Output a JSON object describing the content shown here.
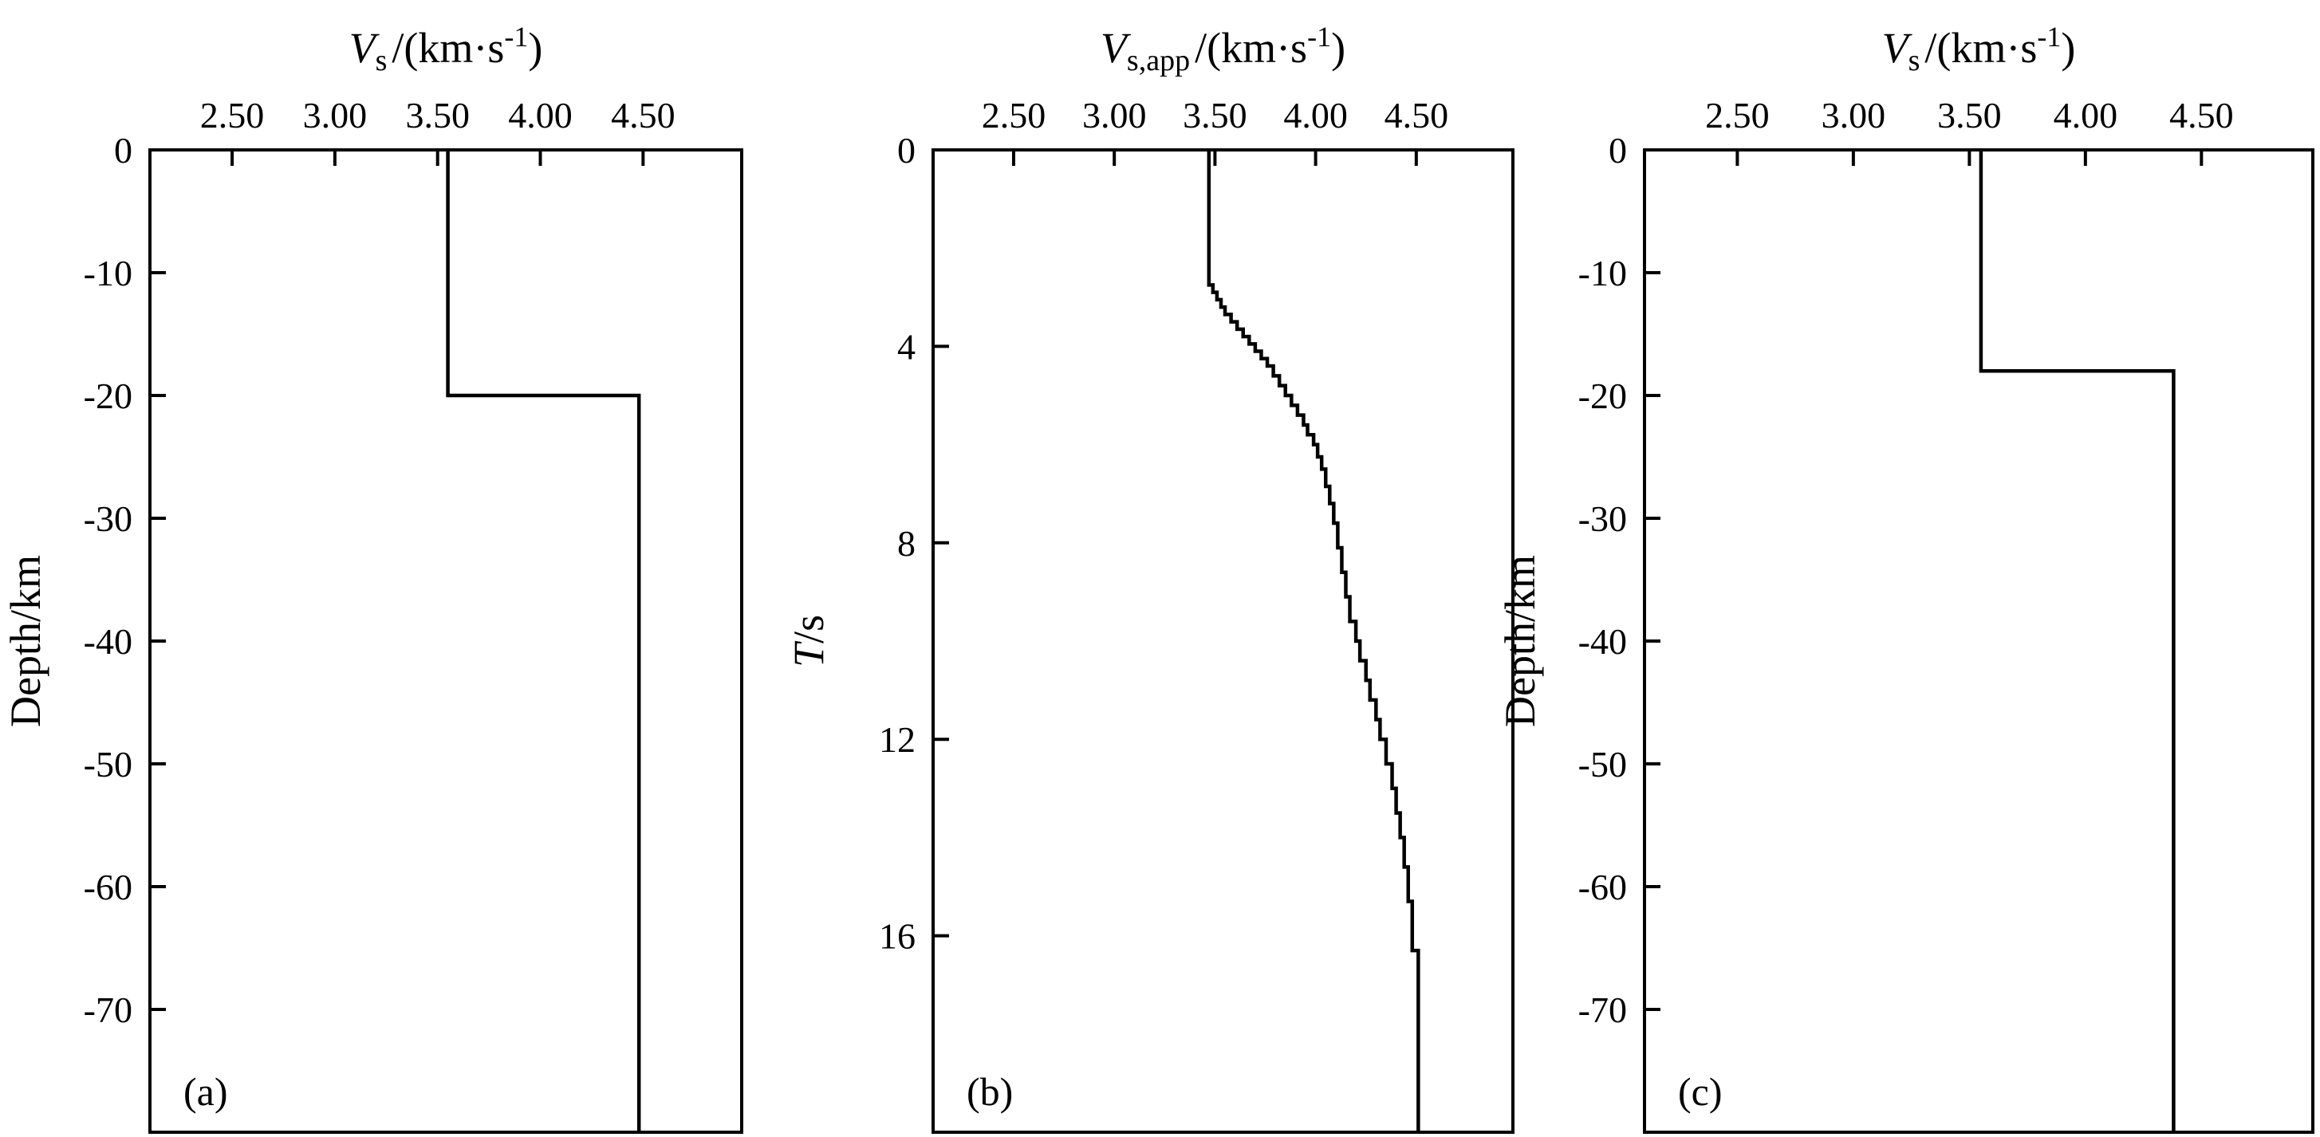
{
  "chart_data": [
    {
      "type": "line",
      "panel_label": "(a)",
      "title": "",
      "xlabel": {
        "main": "V",
        "sub": "s",
        "unit": "/(km·s",
        "sup": "-1",
        "close": ")"
      },
      "ylabel": "Depth/km",
      "xlim": [
        2.1,
        4.98
      ],
      "ylim": [
        0,
        -80
      ],
      "x_axis_position": "top",
      "x_ticks": [
        2.5,
        3.0,
        3.5,
        4.0,
        4.5
      ],
      "x_tick_labels": [
        "2.50",
        "3.00",
        "3.50",
        "4.00",
        "4.50"
      ],
      "y_ticks": [
        0,
        -10,
        -20,
        -30,
        -40,
        -50,
        -60,
        -70
      ],
      "y_tick_labels": [
        "0",
        "-10",
        "-20",
        "-30",
        "-40",
        "-50",
        "-60",
        "-70"
      ],
      "grid": false,
      "series": [
        {
          "x": [
            3.55,
            3.55,
            4.48,
            4.48
          ],
          "y": [
            0,
            -20,
            -20,
            -80
          ]
        }
      ]
    },
    {
      "type": "line",
      "panel_label": "(b)",
      "title": "",
      "xlabel": {
        "main": "V",
        "sub": "s,app",
        "unit": "/(km·s",
        "sup": "-1",
        "close": ")"
      },
      "ylabel": "T/s",
      "xlim": [
        2.1,
        4.98
      ],
      "ylim": [
        0,
        20
      ],
      "x_axis_position": "top",
      "x_ticks": [
        2.5,
        3.0,
        3.5,
        4.0,
        4.5
      ],
      "x_tick_labels": [
        "2.50",
        "3.00",
        "3.50",
        "4.00",
        "4.50"
      ],
      "y_ticks": [
        0,
        4,
        8,
        12,
        16
      ],
      "y_tick_labels": [
        "0",
        "4",
        "8",
        "12",
        "16"
      ],
      "grid": false,
      "series": [
        {
          "step": true,
          "x": [
            3.47,
            3.49,
            3.51,
            3.53,
            3.55,
            3.58,
            3.61,
            3.64,
            3.67,
            3.7,
            3.73,
            3.76,
            3.79,
            3.82,
            3.85,
            3.88,
            3.91,
            3.94,
            3.96,
            3.99,
            4.01,
            4.03,
            4.05,
            4.07,
            4.09,
            4.11,
            4.13,
            4.15,
            4.17,
            4.2,
            4.22,
            4.25,
            4.27,
            4.3,
            4.32,
            4.35,
            4.38,
            4.4,
            4.42,
            4.44,
            4.46,
            4.48,
            4.51
          ],
          "y": [
            0,
            2.75,
            2.9,
            3.05,
            3.2,
            3.35,
            3.5,
            3.65,
            3.8,
            3.95,
            4.1,
            4.25,
            4.4,
            4.6,
            4.8,
            5.0,
            5.2,
            5.4,
            5.6,
            5.8,
            6.0,
            6.25,
            6.5,
            6.85,
            7.2,
            7.6,
            8.1,
            8.6,
            9.1,
            9.6,
            10.0,
            10.4,
            10.8,
            11.2,
            11.6,
            12.0,
            12.5,
            13.0,
            13.5,
            14.0,
            14.6,
            15.3,
            16.3
          ],
          "y_end": 20
        }
      ]
    },
    {
      "type": "line",
      "panel_label": "(c)",
      "title": "",
      "xlabel": {
        "main": "V",
        "sub": "s",
        "unit": "/(km·s",
        "sup": "-1",
        "close": ")"
      },
      "ylabel": "Depth/km",
      "xlim": [
        2.1,
        4.98
      ],
      "ylim": [
        0,
        -80
      ],
      "x_axis_position": "top",
      "x_ticks": [
        2.5,
        3.0,
        3.5,
        4.0,
        4.5
      ],
      "x_tick_labels": [
        "2.50",
        "3.00",
        "3.50",
        "4.00",
        "4.50"
      ],
      "y_ticks": [
        0,
        -10,
        -20,
        -30,
        -40,
        -50,
        -60,
        -70
      ],
      "y_tick_labels": [
        "0",
        "-10",
        "-20",
        "-30",
        "-40",
        "-50",
        "-60",
        "-70"
      ],
      "grid": false,
      "series": [
        {
          "x": [
            3.55,
            3.55,
            4.38,
            4.38
          ],
          "y": [
            0,
            -18,
            -18,
            -80
          ]
        }
      ]
    }
  ]
}
